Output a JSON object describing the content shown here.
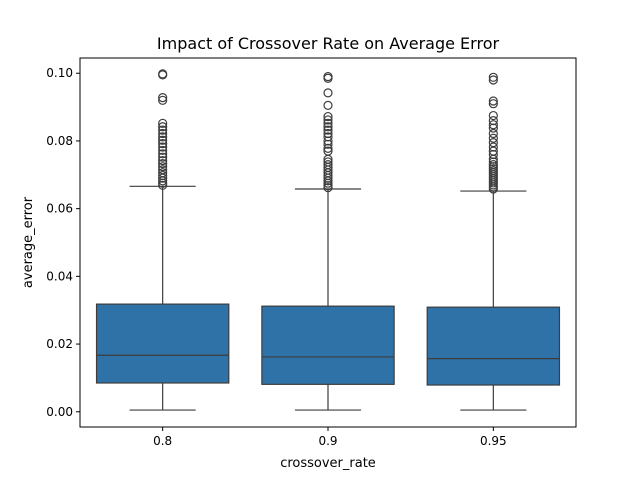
{
  "chart_data": {
    "type": "box",
    "title": "Impact of Crossover Rate on Average Error",
    "xlabel": "crossover_rate",
    "ylabel": "average_error",
    "ylim": [
      -0.0045,
      0.1045
    ],
    "yticks": [
      0.0,
      0.02,
      0.04,
      0.06,
      0.08,
      0.1
    ],
    "ytick_labels": [
      "0.00",
      "0.02",
      "0.04",
      "0.06",
      "0.08",
      "0.10"
    ],
    "grid": false,
    "box_color": "#2e72a8",
    "line_color": "#3d3d3d",
    "categories": [
      "0.8",
      "0.9",
      "0.95"
    ],
    "boxes": [
      {
        "category": "0.8",
        "whislo": 0.0005,
        "q1": 0.0085,
        "median": 0.0167,
        "q3": 0.0318,
        "whishi": 0.0666,
        "fliers": [
          0.0669,
          0.0675,
          0.0682,
          0.069,
          0.0698,
          0.0706,
          0.0715,
          0.0724,
          0.0733,
          0.0742,
          0.0752,
          0.0762,
          0.0772,
          0.0782,
          0.0792,
          0.0802,
          0.0812,
          0.0822,
          0.0832,
          0.0842,
          0.0852,
          0.092,
          0.0928,
          0.0995,
          0.0998
        ]
      },
      {
        "category": "0.9",
        "whislo": 0.0005,
        "q1": 0.0081,
        "median": 0.0162,
        "q3": 0.0312,
        "whishi": 0.0658,
        "fliers": [
          0.0662,
          0.0668,
          0.0675,
          0.0682,
          0.069,
          0.0698,
          0.0706,
          0.0714,
          0.0722,
          0.073,
          0.0738,
          0.0746,
          0.077,
          0.0778,
          0.079,
          0.08,
          0.0812,
          0.0822,
          0.0832,
          0.0842,
          0.0852,
          0.0862,
          0.0872,
          0.0905,
          0.0942,
          0.0985,
          0.099
        ]
      },
      {
        "category": "0.95",
        "whislo": 0.0005,
        "q1": 0.0079,
        "median": 0.0157,
        "q3": 0.0309,
        "whishi": 0.0652,
        "fliers": [
          0.0658,
          0.0664,
          0.067,
          0.0676,
          0.0682,
          0.0688,
          0.0694,
          0.07,
          0.0706,
          0.0712,
          0.0718,
          0.0724,
          0.073,
          0.0738,
          0.0746,
          0.076,
          0.077,
          0.0782,
          0.0795,
          0.0808,
          0.0822,
          0.0838,
          0.0848,
          0.086,
          0.0875,
          0.091,
          0.0918,
          0.098,
          0.0988
        ]
      }
    ]
  }
}
